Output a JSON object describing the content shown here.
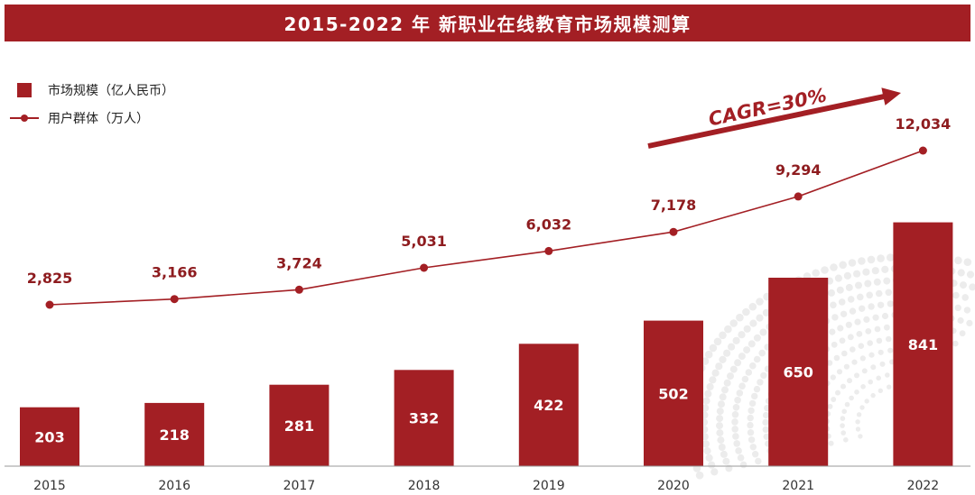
{
  "title": "2015-2022 年 新职业在线教育市场规模测算",
  "colors": {
    "accent": "#a31f24",
    "axis": "#9a9a9a"
  },
  "legend": {
    "bar_label": "市场规模（亿人民币）",
    "line_label": "用户群体（万人）",
    "placement": "top-left"
  },
  "annotation": {
    "text": "CAGR=30%"
  },
  "chart_data": {
    "type": "bar",
    "categories": [
      "2015",
      "2016",
      "2017",
      "2018",
      "2019",
      "2020",
      "2021",
      "2022"
    ],
    "series": [
      {
        "name": "市场规模（亿人民币）",
        "type": "bar",
        "values": [
          203,
          218,
          281,
          332,
          422,
          502,
          650,
          841
        ],
        "labels": [
          "203",
          "218",
          "281",
          "332",
          "422",
          "502",
          "650",
          "841"
        ]
      },
      {
        "name": "用户群体（万人）",
        "type": "line",
        "values": [
          2825,
          3166,
          3724,
          5031,
          6032,
          7178,
          9294,
          12034
        ],
        "labels": [
          "2,825",
          "3,166",
          "3,724",
          "5,031",
          "6,032",
          "7,178",
          "9,294",
          "12,034"
        ]
      }
    ],
    "title": "2015-2022 年 新职业在线教育市场规模测算",
    "xlabel": "",
    "ylabel": "",
    "grid": false
  }
}
